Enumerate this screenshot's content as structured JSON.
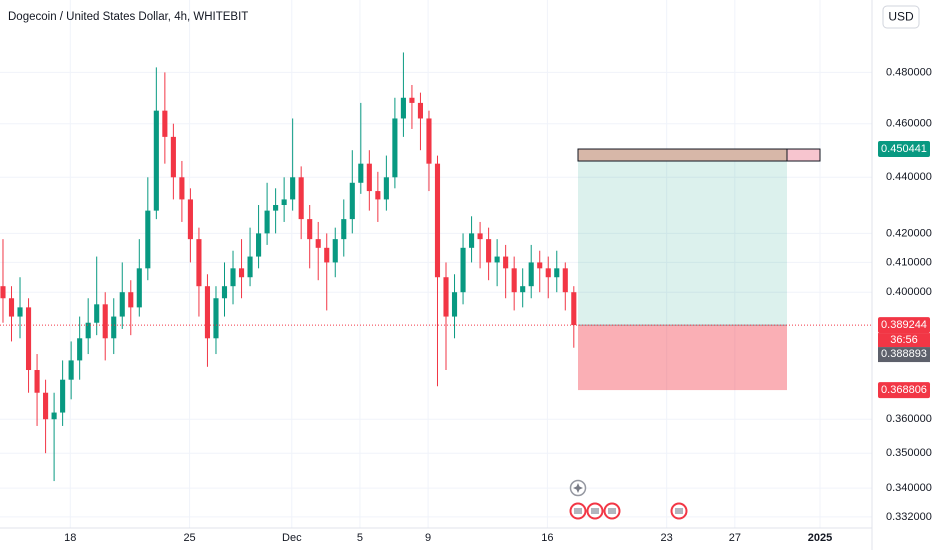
{
  "chart_data": {
    "type": "candlestick",
    "title": "Dogecoin / United States Dollar, 4h, WHITEBIT",
    "currency": "USD",
    "log_scale": true,
    "grid": true,
    "up_color": "#089981",
    "down_color": "#f23645",
    "ylim": [
      0.3284,
      0.5097
    ],
    "yticks": [
      {
        "value": 0.48,
        "label": "0.480000"
      },
      {
        "value": 0.46,
        "label": "0.460000"
      },
      {
        "value": 0.44,
        "label": "0.440000"
      },
      {
        "value": 0.42,
        "label": "0.420000"
      },
      {
        "value": 0.41,
        "label": "0.410000"
      },
      {
        "value": 0.4,
        "label": "0.400000"
      },
      {
        "value": 0.36,
        "label": "0.360000"
      },
      {
        "value": 0.35,
        "label": "0.350000"
      },
      {
        "value": 0.34,
        "label": "0.340000"
      },
      {
        "value": 0.332,
        "label": "0.332000"
      }
    ],
    "xlim": [
      -0.35,
      102
    ],
    "xticks": [
      {
        "value": 7.9,
        "label": "18"
      },
      {
        "value": 21.9,
        "label": "25"
      },
      {
        "value": 33.9,
        "label": "Dec"
      },
      {
        "value": 41.9,
        "label": "5"
      },
      {
        "value": 49.9,
        "label": "9"
      },
      {
        "value": 63.9,
        "label": "16"
      },
      {
        "value": 77.9,
        "label": "23"
      },
      {
        "value": 85.9,
        "label": "27"
      },
      {
        "value": 95.9,
        "label": "2025"
      }
    ],
    "open": [
      0.402,
      0.398,
      0.392,
      0.395,
      0.375,
      0.368,
      0.36,
      0.362,
      0.372,
      0.378,
      0.385,
      0.39,
      0.396,
      0.385,
      0.392,
      0.4,
      0.395,
      0.408,
      0.428,
      0.465,
      0.455,
      0.44,
      0.432,
      0.418,
      0.402,
      0.385,
      0.398,
      0.402,
      0.408,
      0.405,
      0.412,
      0.42,
      0.428,
      0.43,
      0.432,
      0.44,
      0.425,
      0.418,
      0.415,
      0.41,
      0.418,
      0.425,
      0.438,
      0.445,
      0.435,
      0.432,
      0.44,
      0.462,
      0.47,
      0.468,
      0.462,
      0.445,
      0.405,
      0.392,
      0.4,
      0.415,
      0.42,
      0.418,
      0.41,
      0.412,
      0.408,
      0.4,
      0.402,
      0.41,
      0.408,
      0.405,
      0.408,
      0.4
    ],
    "high": [
      0.418,
      0.402,
      0.405,
      0.398,
      0.38,
      0.372,
      0.368,
      0.378,
      0.384,
      0.392,
      0.398,
      0.412,
      0.4,
      0.398,
      0.41,
      0.404,
      0.418,
      0.44,
      0.482,
      0.48,
      0.46,
      0.446,
      0.436,
      0.422,
      0.406,
      0.402,
      0.41,
      0.414,
      0.418,
      0.422,
      0.43,
      0.438,
      0.436,
      0.44,
      0.462,
      0.444,
      0.43,
      0.424,
      0.42,
      0.422,
      0.432,
      0.45,
      0.468,
      0.45,
      0.442,
      0.448,
      0.47,
      0.488,
      0.475,
      0.472,
      0.465,
      0.448,
      0.41,
      0.406,
      0.42,
      0.426,
      0.424,
      0.422,
      0.418,
      0.416,
      0.412,
      0.408,
      0.416,
      0.414,
      0.412,
      0.414,
      0.41,
      0.402
    ],
    "low": [
      0.39,
      0.384,
      0.385,
      0.368,
      0.358,
      0.35,
      0.342,
      0.358,
      0.366,
      0.372,
      0.38,
      0.386,
      0.378,
      0.38,
      0.388,
      0.386,
      0.392,
      0.404,
      0.425,
      0.445,
      0.432,
      0.424,
      0.41,
      0.392,
      0.376,
      0.38,
      0.392,
      0.396,
      0.398,
      0.402,
      0.408,
      0.416,
      0.42,
      0.424,
      0.428,
      0.418,
      0.408,
      0.404,
      0.394,
      0.405,
      0.412,
      0.42,
      0.434,
      0.428,
      0.424,
      0.428,
      0.436,
      0.455,
      0.458,
      0.45,
      0.435,
      0.37,
      0.375,
      0.385,
      0.396,
      0.41,
      0.408,
      0.404,
      0.402,
      0.398,
      0.394,
      0.395,
      0.398,
      0.4,
      0.398,
      0.4,
      0.394,
      0.382
    ],
    "close": [
      0.398,
      0.392,
      0.395,
      0.375,
      0.368,
      0.36,
      0.362,
      0.372,
      0.378,
      0.385,
      0.39,
      0.396,
      0.385,
      0.392,
      0.4,
      0.395,
      0.408,
      0.428,
      0.465,
      0.455,
      0.44,
      0.432,
      0.418,
      0.402,
      0.385,
      0.398,
      0.402,
      0.408,
      0.405,
      0.412,
      0.42,
      0.428,
      0.43,
      0.432,
      0.44,
      0.425,
      0.418,
      0.415,
      0.41,
      0.418,
      0.425,
      0.438,
      0.445,
      0.435,
      0.432,
      0.44,
      0.462,
      0.47,
      0.468,
      0.462,
      0.445,
      0.405,
      0.392,
      0.4,
      0.415,
      0.42,
      0.418,
      0.41,
      0.412,
      0.408,
      0.4,
      0.402,
      0.41,
      0.408,
      0.405,
      0.408,
      0.4,
      0.389244
    ],
    "last_price": 0.389244,
    "countdown": "36:56",
    "bid_price": 0.388893,
    "position": {
      "target": 0.450441,
      "stop": 0.368806
    }
  }
}
